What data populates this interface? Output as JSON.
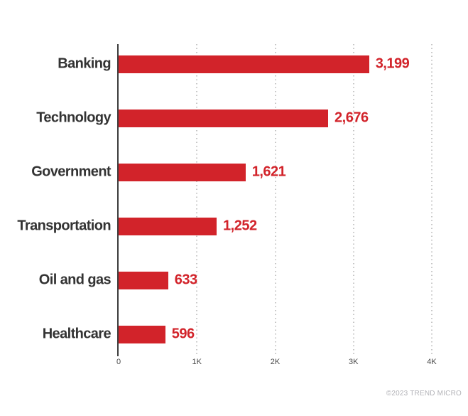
{
  "chart_data": {
    "type": "bar",
    "orientation": "horizontal",
    "categories": [
      "Banking",
      "Technology",
      "Government",
      "Transportation",
      "Oil and gas",
      "Healthcare"
    ],
    "values": [
      3199,
      2676,
      1621,
      1252,
      633,
      596
    ],
    "value_labels": [
      "3,199",
      "2,676",
      "1,621",
      "1,252",
      "633",
      "596"
    ],
    "xlim": [
      0,
      4000
    ],
    "x_ticks": [
      "0",
      "1K",
      "2K",
      "3K",
      "4K"
    ],
    "grid": "vertical-dotted",
    "legend": "none",
    "title": "",
    "xlabel": "",
    "ylabel": "",
    "bar_color": "#d2232a",
    "value_label_color": "#d2232a",
    "category_label_color": "#333333",
    "axis_line_color": "#3d3d3d",
    "gridline_color": "#c6c6c6",
    "tick_label_color": "#4a4a4a"
  },
  "footer": {
    "credit": "©2023 TREND MICRO"
  }
}
